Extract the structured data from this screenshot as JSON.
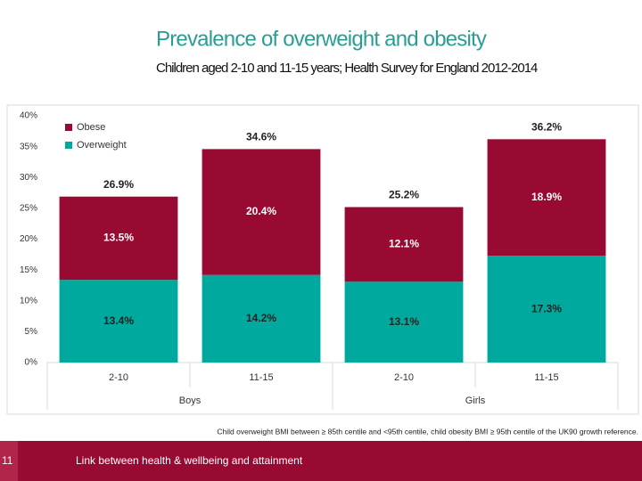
{
  "title": "Prevalence of overweight and obesity",
  "subtitle": "Children aged 2-10 and 11-15 years; Health Survey for England 2012-2014",
  "chart_data": {
    "type": "stacked-bar",
    "categories": [
      "2-10",
      "11-15",
      "2-10",
      "11-15"
    ],
    "groups": [
      "Boys",
      "Girls"
    ],
    "series": [
      {
        "name": "Overweight",
        "color": "#00a99d",
        "label_color": "#222222",
        "values": [
          13.4,
          14.2,
          13.1,
          17.3
        ],
        "value_labels": [
          "13.4%",
          "14.2%",
          "13.1%",
          "17.3%"
        ]
      },
      {
        "name": "Obese",
        "color": "#990a33",
        "label_color": "#ffffff",
        "values": [
          13.5,
          20.4,
          12.1,
          18.9
        ],
        "value_labels": [
          "13.5%",
          "20.4%",
          "12.1%",
          "18.9%"
        ]
      }
    ],
    "totals": {
      "values": [
        26.9,
        34.6,
        25.2,
        36.2
      ],
      "value_labels": [
        "26.9%",
        "34.6%",
        "25.2%",
        "36.2%"
      ]
    },
    "ylim": [
      0,
      40
    ],
    "yticks": [
      {
        "value": 0,
        "label": "0%"
      },
      {
        "value": 5,
        "label": "5%"
      },
      {
        "value": 10,
        "label": "10%"
      },
      {
        "value": 15,
        "label": "15%"
      },
      {
        "value": 20,
        "label": "20%"
      },
      {
        "value": 25,
        "label": "25%"
      },
      {
        "value": 30,
        "label": "30%"
      },
      {
        "value": 35,
        "label": "35%"
      },
      {
        "value": 40,
        "label": "40%"
      }
    ],
    "legend": "top-left"
  },
  "footnote": "Child overweight BMI between ≥ 85th centile and <95th centile, child obesity BMI ≥ 95th centile of the UK90 growth reference.",
  "footer": {
    "page": "11",
    "text": "Link between health & wellbeing and attainment"
  }
}
